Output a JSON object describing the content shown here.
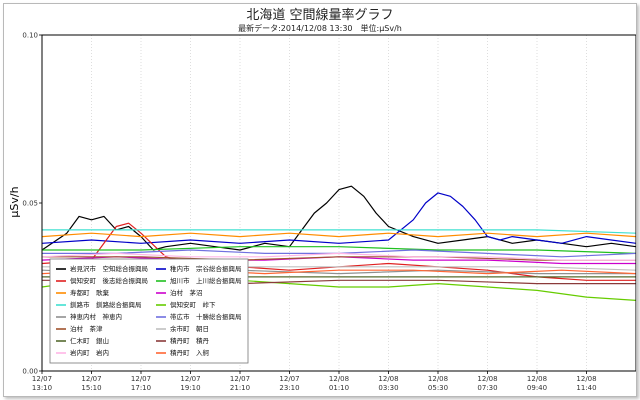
{
  "chart_data": {
    "type": "line",
    "title": "北海道 空間線量率グラフ",
    "subtitle": "最新データ:2014/12/08 13:30　単位:μSv/h",
    "ylabel": "μSv/h",
    "ylim": [
      0,
      0.1
    ],
    "yticks": [
      {
        "value": 0,
        "label": "0.00"
      },
      {
        "value": 0.05,
        "label": "0.05"
      },
      {
        "value": 0.1,
        "label": "0.10"
      }
    ],
    "xlim": [
      0,
      24
    ],
    "xticks": [
      {
        "x": 0,
        "date": "12/07",
        "time": "13:10"
      },
      {
        "x": 2,
        "date": "12/07",
        "time": "15:10"
      },
      {
        "x": 4,
        "date": "12/07",
        "time": "17:10"
      },
      {
        "x": 6,
        "date": "12/07",
        "time": "19:10"
      },
      {
        "x": 8,
        "date": "12/07",
        "time": "21:10"
      },
      {
        "x": 10,
        "date": "12/07",
        "time": "23:10"
      },
      {
        "x": 12,
        "date": "12/08",
        "time": "01:10"
      },
      {
        "x": 14,
        "date": "12/08",
        "time": "03:30"
      },
      {
        "x": 16,
        "date": "12/08",
        "time": "05:30"
      },
      {
        "x": 18,
        "date": "12/08",
        "time": "07:30"
      },
      {
        "x": 20,
        "date": "12/08",
        "time": "09:40"
      },
      {
        "x": 22,
        "date": "12/08",
        "time": "11:40"
      }
    ],
    "grid": "dotted-vertical",
    "legend_position": "bottom-left",
    "series": [
      {
        "name": "岩見沢市　空知総合振興局",
        "color": "#000000",
        "x": [
          0,
          1,
          1.5,
          2,
          2.5,
          3,
          3.5,
          4,
          4.5,
          5,
          6,
          7,
          8,
          9,
          10,
          10.5,
          11,
          11.5,
          12,
          12.5,
          13,
          13.5,
          14,
          15,
          16,
          17,
          18,
          19,
          20,
          21,
          22,
          23,
          24
        ],
        "y": [
          0.036,
          0.041,
          0.046,
          0.045,
          0.046,
          0.042,
          0.043,
          0.04,
          0.036,
          0.037,
          0.038,
          0.037,
          0.036,
          0.038,
          0.037,
          0.042,
          0.047,
          0.05,
          0.054,
          0.055,
          0.052,
          0.047,
          0.043,
          0.04,
          0.038,
          0.039,
          0.04,
          0.038,
          0.039,
          0.038,
          0.037,
          0.038,
          0.037
        ]
      },
      {
        "name": "稚内市　宗谷総合振興局",
        "color": "#0000c8",
        "x": [
          0,
          2,
          4,
          6,
          8,
          10,
          12,
          14,
          15,
          15.5,
          16,
          16.5,
          17,
          17.5,
          18,
          18.5,
          19,
          20,
          21,
          22,
          23,
          24
        ],
        "y": [
          0.038,
          0.039,
          0.038,
          0.039,
          0.038,
          0.039,
          0.038,
          0.039,
          0.045,
          0.05,
          0.053,
          0.052,
          0.049,
          0.045,
          0.04,
          0.039,
          0.04,
          0.039,
          0.038,
          0.04,
          0.039,
          0.038
        ]
      },
      {
        "name": "倶知安町　後志総合振興局",
        "color": "#e02020",
        "x": [
          0,
          2,
          3,
          3.5,
          4,
          5,
          6,
          8,
          10,
          12,
          14,
          16,
          18,
          20,
          22,
          24
        ],
        "y": [
          0.032,
          0.033,
          0.043,
          0.044,
          0.041,
          0.034,
          0.032,
          0.031,
          0.03,
          0.031,
          0.032,
          0.031,
          0.03,
          0.028,
          0.027,
          0.027
        ]
      },
      {
        "name": "旭川市　上川総合振興局",
        "color": "#20c020",
        "x": [
          0,
          4,
          8,
          12,
          16,
          20,
          24
        ],
        "y": [
          0.036,
          0.036,
          0.037,
          0.037,
          0.036,
          0.036,
          0.035
        ]
      },
      {
        "name": "寿都町　歌棄",
        "color": "#ff8c00",
        "x": [
          0,
          2,
          4,
          6,
          8,
          10,
          12,
          14,
          16,
          18,
          20,
          22,
          24
        ],
        "y": [
          0.04,
          0.041,
          0.04,
          0.041,
          0.04,
          0.041,
          0.04,
          0.041,
          0.04,
          0.041,
          0.04,
          0.041,
          0.04
        ]
      },
      {
        "name": "泊村　茅沼",
        "color": "#cc00cc",
        "x": [
          0,
          3,
          6,
          9,
          12,
          15,
          18,
          21,
          24
        ],
        "y": [
          0.033,
          0.034,
          0.033,
          0.033,
          0.034,
          0.033,
          0.033,
          0.032,
          0.032
        ]
      },
      {
        "name": "釧路市　釧路総合振興局",
        "color": "#40e0d0",
        "x": [
          0,
          4,
          8,
          12,
          16,
          20,
          24
        ],
        "y": [
          0.042,
          0.042,
          0.042,
          0.042,
          0.042,
          0.042,
          0.041
        ]
      },
      {
        "name": "倶知安町　峠下",
        "color": "#66cc00",
        "x": [
          0,
          2,
          4,
          6,
          8,
          10,
          12,
          14,
          16,
          18,
          20,
          22,
          24
        ],
        "y": [
          0.025,
          0.027,
          0.026,
          0.026,
          0.027,
          0.026,
          0.025,
          0.025,
          0.026,
          0.025,
          0.024,
          0.022,
          0.021
        ]
      },
      {
        "name": "神恵内村　神恵内",
        "color": "#909090",
        "x": [
          0,
          4,
          8,
          12,
          16,
          20,
          24
        ],
        "y": [
          0.03,
          0.029,
          0.03,
          0.029,
          0.03,
          0.029,
          0.029
        ]
      },
      {
        "name": "帯広市　十勝総合振興局",
        "color": "#7070e0",
        "x": [
          0,
          3,
          6,
          9,
          12,
          15,
          18,
          21,
          24
        ],
        "y": [
          0.035,
          0.035,
          0.036,
          0.035,
          0.035,
          0.036,
          0.035,
          0.034,
          0.035
        ]
      },
      {
        "name": "泊村　茶津",
        "color": "#a0522d",
        "x": [
          0,
          4,
          8,
          12,
          16,
          20,
          24
        ],
        "y": [
          0.034,
          0.034,
          0.033,
          0.034,
          0.034,
          0.033,
          0.033
        ]
      },
      {
        "name": "余市町　朝日",
        "color": "#c0c0c0",
        "x": [
          0,
          4,
          8,
          12,
          16,
          20,
          24
        ],
        "y": [
          0.031,
          0.031,
          0.031,
          0.031,
          0.031,
          0.031,
          0.03
        ]
      },
      {
        "name": "仁木町　銀山",
        "color": "#556b2f",
        "x": [
          0,
          4,
          8,
          12,
          16,
          20,
          24
        ],
        "y": [
          0.028,
          0.028,
          0.028,
          0.028,
          0.028,
          0.028,
          0.028
        ]
      },
      {
        "name": "岩内町　岩内",
        "color": "#ffb6e6",
        "x": [
          0,
          3,
          6,
          9,
          12,
          15,
          18,
          21,
          24
        ],
        "y": [
          0.034,
          0.035,
          0.034,
          0.034,
          0.035,
          0.034,
          0.034,
          0.033,
          0.033
        ]
      },
      {
        "name": "積丹町　入舸",
        "color": "#ff6633",
        "x": [
          0,
          3,
          6,
          9,
          12,
          15,
          18,
          21,
          24
        ],
        "y": [
          0.029,
          0.03,
          0.03,
          0.029,
          0.03,
          0.03,
          0.029,
          0.03,
          0.029
        ]
      },
      {
        "name": "積丹町　積丹",
        "color": "#8b3a3a",
        "x": [
          0,
          4,
          8,
          12,
          16,
          20,
          24
        ],
        "y": [
          0.027,
          0.027,
          0.026,
          0.027,
          0.027,
          0.026,
          0.026
        ]
      }
    ],
    "legend": [
      {
        "label": "岩見沢市　空知総合振興局",
        "color": "#000000"
      },
      {
        "label": "稚内市　宗谷総合振興局",
        "color": "#0000c8"
      },
      {
        "label": "倶知安町　後志総合振興局",
        "color": "#e02020"
      },
      {
        "label": "旭川市　上川総合振興局",
        "color": "#20c020"
      },
      {
        "label": "寿都町　歌棄",
        "color": "#ff8c00"
      },
      {
        "label": "泊村　茅沼",
        "color": "#cc00cc"
      },
      {
        "label": "釧路市　釧路総合振興局",
        "color": "#40e0d0"
      },
      {
        "label": "倶知安町　峠下",
        "color": "#66cc00"
      },
      {
        "label": "神恵内村　神恵内",
        "color": "#909090"
      },
      {
        "label": "帯広市　十勝総合振興局",
        "color": "#7070e0"
      },
      {
        "label": "泊村　茶津",
        "color": "#a0522d"
      },
      {
        "label": "余市町　朝日",
        "color": "#c0c0c0"
      },
      {
        "label": "仁木町　銀山",
        "color": "#556b2f"
      },
      {
        "label": "積丹町　積丹",
        "color": "#8b3a3a"
      },
      {
        "label": "岩内町　岩内",
        "color": "#ffb6e6"
      },
      {
        "label": "積丹町　入舸",
        "color": "#ff6633"
      }
    ]
  }
}
